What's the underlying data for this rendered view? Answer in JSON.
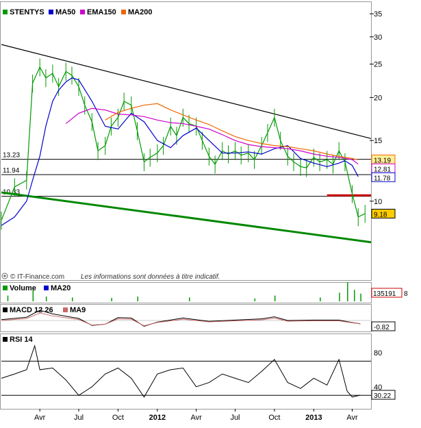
{
  "chart_data": [
    {
      "type": "line",
      "panel": "price",
      "legend": [
        {
          "name": "STENTYS",
          "color": "#009900",
          "icon": "candlestick-icon"
        },
        {
          "name": "MA50",
          "color": "#0000cc",
          "icon": "line-icon"
        },
        {
          "name": "EMA150",
          "color": "#cc00cc",
          "icon": "line-icon"
        },
        {
          "name": "MA200",
          "color": "#ee6600",
          "icon": "line-icon"
        }
      ],
      "scale": "log",
      "ylim": [
        6.8,
        37
      ],
      "y_ticks": [
        "35",
        "30",
        "25",
        "20",
        "15",
        "10"
      ],
      "y_tick_values": [
        35,
        30,
        25,
        20,
        15,
        10
      ],
      "x_range": [
        "2011-01-01",
        "2013-05-15"
      ],
      "x_ticks": [
        {
          "label": "Avr",
          "date": "2011-04-01",
          "bold": false
        },
        {
          "label": "Jul",
          "date": "2011-07-01",
          "bold": false
        },
        {
          "label": "Oct",
          "date": "2011-10-01",
          "bold": false
        },
        {
          "label": "2012",
          "date": "2012-01-01",
          "bold": true
        },
        {
          "label": "Avr",
          "date": "2012-04-01",
          "bold": false
        },
        {
          "label": "Jul",
          "date": "2012-07-01",
          "bold": false
        },
        {
          "label": "Oct",
          "date": "2012-10-01",
          "bold": false
        },
        {
          "label": "2013",
          "date": "2013-01-01",
          "bold": true
        },
        {
          "label": "Avr",
          "date": "2013-04-01",
          "bold": false
        }
      ],
      "levels": [
        {
          "label": "13.23",
          "value": 13.23
        },
        {
          "label": "11.94",
          "value": 11.94
        },
        {
          "label": "10.33",
          "value": 10.33
        }
      ],
      "last_values": [
        {
          "label": "13.19",
          "value": 13.19,
          "color": "#ee6600",
          "bg": "#ffee99"
        },
        {
          "label": "12.81",
          "value": 12.81,
          "color": "#cc00cc",
          "bg": "#ffffff"
        },
        {
          "label": "11.78",
          "value": 11.78,
          "color": "#0000cc",
          "bg": "#ffffff"
        },
        {
          "label": "9.18",
          "value": 9.18,
          "color": "#000000",
          "bg": "#ffcc00"
        }
      ],
      "trendlines": [
        {
          "name": "resistance",
          "color": "#000000",
          "from": [
            "2011-01-01",
            28.5
          ],
          "to": [
            "2013-05-15",
            15.2
          ]
        },
        {
          "name": "support",
          "color": "#008800",
          "from": [
            "2011-01-01",
            10.6
          ],
          "to": [
            "2013-05-15",
            7.6
          ]
        },
        {
          "name": "breakdown",
          "color": "#cc0000",
          "from": [
            "2013-02-01",
            10.4
          ],
          "to": [
            "2013-05-15",
            10.4
          ]
        }
      ],
      "price_series": {
        "name": "STENTYS",
        "x": [
          "2011-01-01",
          "2011-02-01",
          "2011-03-01",
          "2011-03-15",
          "2011-04-01",
          "2011-04-15",
          "2011-05-01",
          "2011-05-15",
          "2011-06-01",
          "2011-06-15",
          "2011-07-01",
          "2011-07-15",
          "2011-08-01",
          "2011-08-15",
          "2011-09-01",
          "2011-09-15",
          "2011-10-01",
          "2011-10-15",
          "2011-11-01",
          "2011-11-15",
          "2011-12-01",
          "2011-12-15",
          "2012-01-01",
          "2012-01-15",
          "2012-02-01",
          "2012-02-15",
          "2012-03-01",
          "2012-03-15",
          "2012-04-01",
          "2012-04-15",
          "2012-05-01",
          "2012-05-15",
          "2012-06-01",
          "2012-06-15",
          "2012-07-01",
          "2012-07-15",
          "2012-08-01",
          "2012-08-15",
          "2012-09-01",
          "2012-09-15",
          "2012-10-01",
          "2012-10-15",
          "2012-11-01",
          "2012-11-15",
          "2012-12-01",
          "2012-12-15",
          "2013-01-01",
          "2013-01-15",
          "2013-02-01",
          "2013-02-15",
          "2013-03-01",
          "2013-03-15",
          "2013-04-01",
          "2013-04-15",
          "2013-05-01"
        ],
        "values": [
          8.8,
          11.0,
          11.5,
          22.0,
          24.5,
          22.8,
          23.5,
          21.5,
          23.8,
          23.2,
          21.5,
          19.0,
          17.0,
          14.0,
          14.5,
          16.5,
          17.5,
          19.5,
          19.0,
          16.0,
          13.0,
          13.4,
          13.8,
          14.5,
          16.5,
          15.5,
          17.5,
          16.8,
          16.5,
          15.0,
          13.5,
          12.8,
          14.0,
          13.7,
          14.0,
          13.6,
          13.8,
          13.2,
          14.5,
          15.8,
          17.5,
          15.0,
          13.5,
          13.0,
          12.6,
          12.5,
          13.4,
          13.0,
          13.2,
          12.8,
          14.0,
          13.0,
          10.5,
          9.0,
          9.2
        ]
      },
      "series": [
        {
          "name": "MA50",
          "color": "#0000cc",
          "x": [
            "2011-01-01",
            "2011-02-01",
            "2011-03-01",
            "2011-03-15",
            "2011-04-01",
            "2011-04-15",
            "2011-05-01",
            "2011-05-15",
            "2011-06-01",
            "2011-06-15",
            "2011-07-01",
            "2011-08-01",
            "2011-09-01",
            "2011-10-01",
            "2011-11-01",
            "2011-12-01",
            "2012-01-01",
            "2012-02-01",
            "2012-03-01",
            "2012-04-01",
            "2012-05-01",
            "2012-06-01",
            "2012-07-01",
            "2012-08-01",
            "2012-09-01",
            "2012-10-01",
            "2012-11-01",
            "2012-12-01",
            "2013-01-01",
            "2013-02-01",
            "2013-03-01",
            "2013-03-15",
            "2013-04-01",
            "2013-04-15"
          ],
          "values": [
            8.5,
            9.0,
            10.0,
            11.5,
            13.5,
            16.5,
            19.5,
            21.0,
            22.2,
            22.8,
            22.5,
            19.5,
            16.5,
            16.2,
            18.0,
            17.0,
            15.0,
            14.3,
            15.5,
            16.3,
            15.0,
            13.8,
            13.8,
            13.9,
            13.7,
            14.2,
            14.5,
            13.3,
            12.9,
            12.6,
            12.9,
            13.1,
            12.7,
            11.78
          ]
        },
        {
          "name": "EMA150",
          "color": "#cc00cc",
          "x": [
            "2011-06-01",
            "2011-07-01",
            "2011-08-01",
            "2011-09-01",
            "2011-10-01",
            "2011-11-01",
            "2011-12-01",
            "2012-01-01",
            "2012-02-01",
            "2012-03-01",
            "2012-04-01",
            "2012-05-01",
            "2012-06-01",
            "2012-07-01",
            "2012-08-01",
            "2012-09-01",
            "2012-10-01",
            "2012-11-01",
            "2012-12-01",
            "2013-01-01",
            "2013-02-01",
            "2013-03-01",
            "2013-04-01",
            "2013-04-15"
          ],
          "values": [
            16.8,
            18.0,
            18.6,
            18.4,
            17.9,
            17.8,
            17.6,
            17.2,
            16.9,
            16.8,
            16.5,
            16.2,
            15.6,
            15.0,
            14.6,
            14.4,
            14.3,
            14.2,
            14.0,
            13.7,
            13.5,
            13.4,
            13.2,
            12.81
          ]
        },
        {
          "name": "MA200",
          "color": "#ee6600",
          "x": [
            "2011-09-01",
            "2011-10-01",
            "2011-11-01",
            "2011-12-01",
            "2012-01-01",
            "2012-02-01",
            "2012-03-01",
            "2012-04-01",
            "2012-05-01",
            "2012-06-01",
            "2012-07-01",
            "2012-08-01",
            "2012-09-01",
            "2012-10-01",
            "2012-11-01",
            "2012-12-01",
            "2013-01-01",
            "2013-02-01",
            "2013-03-01",
            "2013-04-01",
            "2013-04-15"
          ],
          "values": [
            17.2,
            18.1,
            18.6,
            19.0,
            19.2,
            18.4,
            17.8,
            17.2,
            16.7,
            16.0,
            15.4,
            15.0,
            14.7,
            14.5,
            14.4,
            14.2,
            14.0,
            13.7,
            13.5,
            13.3,
            13.19
          ]
        }
      ]
    },
    {
      "type": "bar",
      "panel": "volume",
      "legend": [
        {
          "name": "Volume",
          "color": "#009900",
          "icon": "bar-icon"
        },
        {
          "name": "MA20",
          "color": "#0000cc",
          "icon": "line-icon"
        }
      ],
      "last_value": "135191",
      "last_value_color": "#cc0000",
      "last_value_suffix": "8",
      "x": [
        "2011-01-15",
        "2011-03-15",
        "2011-04-15",
        "2011-06-15",
        "2011-09-15",
        "2011-11-15",
        "2012-03-15",
        "2012-08-15",
        "2012-10-01",
        "2013-01-15",
        "2013-03-01",
        "2013-03-20",
        "2013-04-05",
        "2013-04-20"
      ],
      "values": [
        30,
        60,
        25,
        20,
        18,
        25,
        20,
        15,
        30,
        20,
        45,
        100,
        60,
        40
      ]
    },
    {
      "type": "line",
      "panel": "macd",
      "legend": [
        {
          "name": "MACD 12 26",
          "color": "#000000",
          "icon": "line-icon"
        },
        {
          "name": "MA9",
          "color": "#cc6666",
          "icon": "line-icon"
        }
      ],
      "last_value": "-0.82",
      "x": [
        "2011-01-01",
        "2011-03-01",
        "2011-04-01",
        "2011-05-01",
        "2011-07-01",
        "2011-08-01",
        "2011-09-01",
        "2011-10-01",
        "2011-11-01",
        "2011-12-01",
        "2012-01-01",
        "2012-03-01",
        "2012-05-01",
        "2012-07-01",
        "2012-09-01",
        "2012-10-01",
        "2012-11-01",
        "2013-01-01",
        "2013-03-01",
        "2013-04-01",
        "2013-04-20"
      ],
      "values": [
        0.2,
        0.8,
        2.5,
        1.6,
        0.5,
        -1.2,
        -0.9,
        0.7,
        0.6,
        -1.4,
        -0.4,
        0.6,
        -0.2,
        0.1,
        0.4,
        0.9,
        0.0,
        0.1,
        0.1,
        -0.5,
        -0.82
      ]
    },
    {
      "type": "line",
      "panel": "rsi",
      "legend": [
        {
          "name": "RSI 14",
          "color": "#000000",
          "icon": "line-icon"
        }
      ],
      "ylim": [
        15,
        100
      ],
      "y_ticks": [
        "80",
        "40"
      ],
      "y_tick_values": [
        80,
        40
      ],
      "levels": [
        70,
        30
      ],
      "last_value": "30.22",
      "x": [
        "2011-01-01",
        "2011-02-01",
        "2011-03-01",
        "2011-03-20",
        "2011-04-01",
        "2011-05-01",
        "2011-06-01",
        "2011-07-01",
        "2011-08-01",
        "2011-09-01",
        "2011-10-01",
        "2011-11-01",
        "2011-12-01",
        "2012-01-01",
        "2012-02-01",
        "2012-03-01",
        "2012-04-01",
        "2012-05-01",
        "2012-06-01",
        "2012-07-01",
        "2012-08-01",
        "2012-09-01",
        "2012-10-01",
        "2012-11-01",
        "2012-12-01",
        "2013-01-01",
        "2013-02-01",
        "2013-03-01",
        "2013-03-20",
        "2013-04-01",
        "2013-04-20"
      ],
      "values": [
        50,
        55,
        60,
        88,
        60,
        62,
        48,
        30,
        40,
        55,
        62,
        50,
        28,
        55,
        60,
        62,
        40,
        45,
        55,
        50,
        45,
        58,
        72,
        45,
        38,
        50,
        42,
        72,
        35,
        28,
        30.22
      ]
    }
  ],
  "footer": {
    "brand_icon": "it-finance-logo-icon",
    "copyright": "© IT-Finance.com",
    "disclaimer": "Les informations sont données à titre indicatif."
  }
}
